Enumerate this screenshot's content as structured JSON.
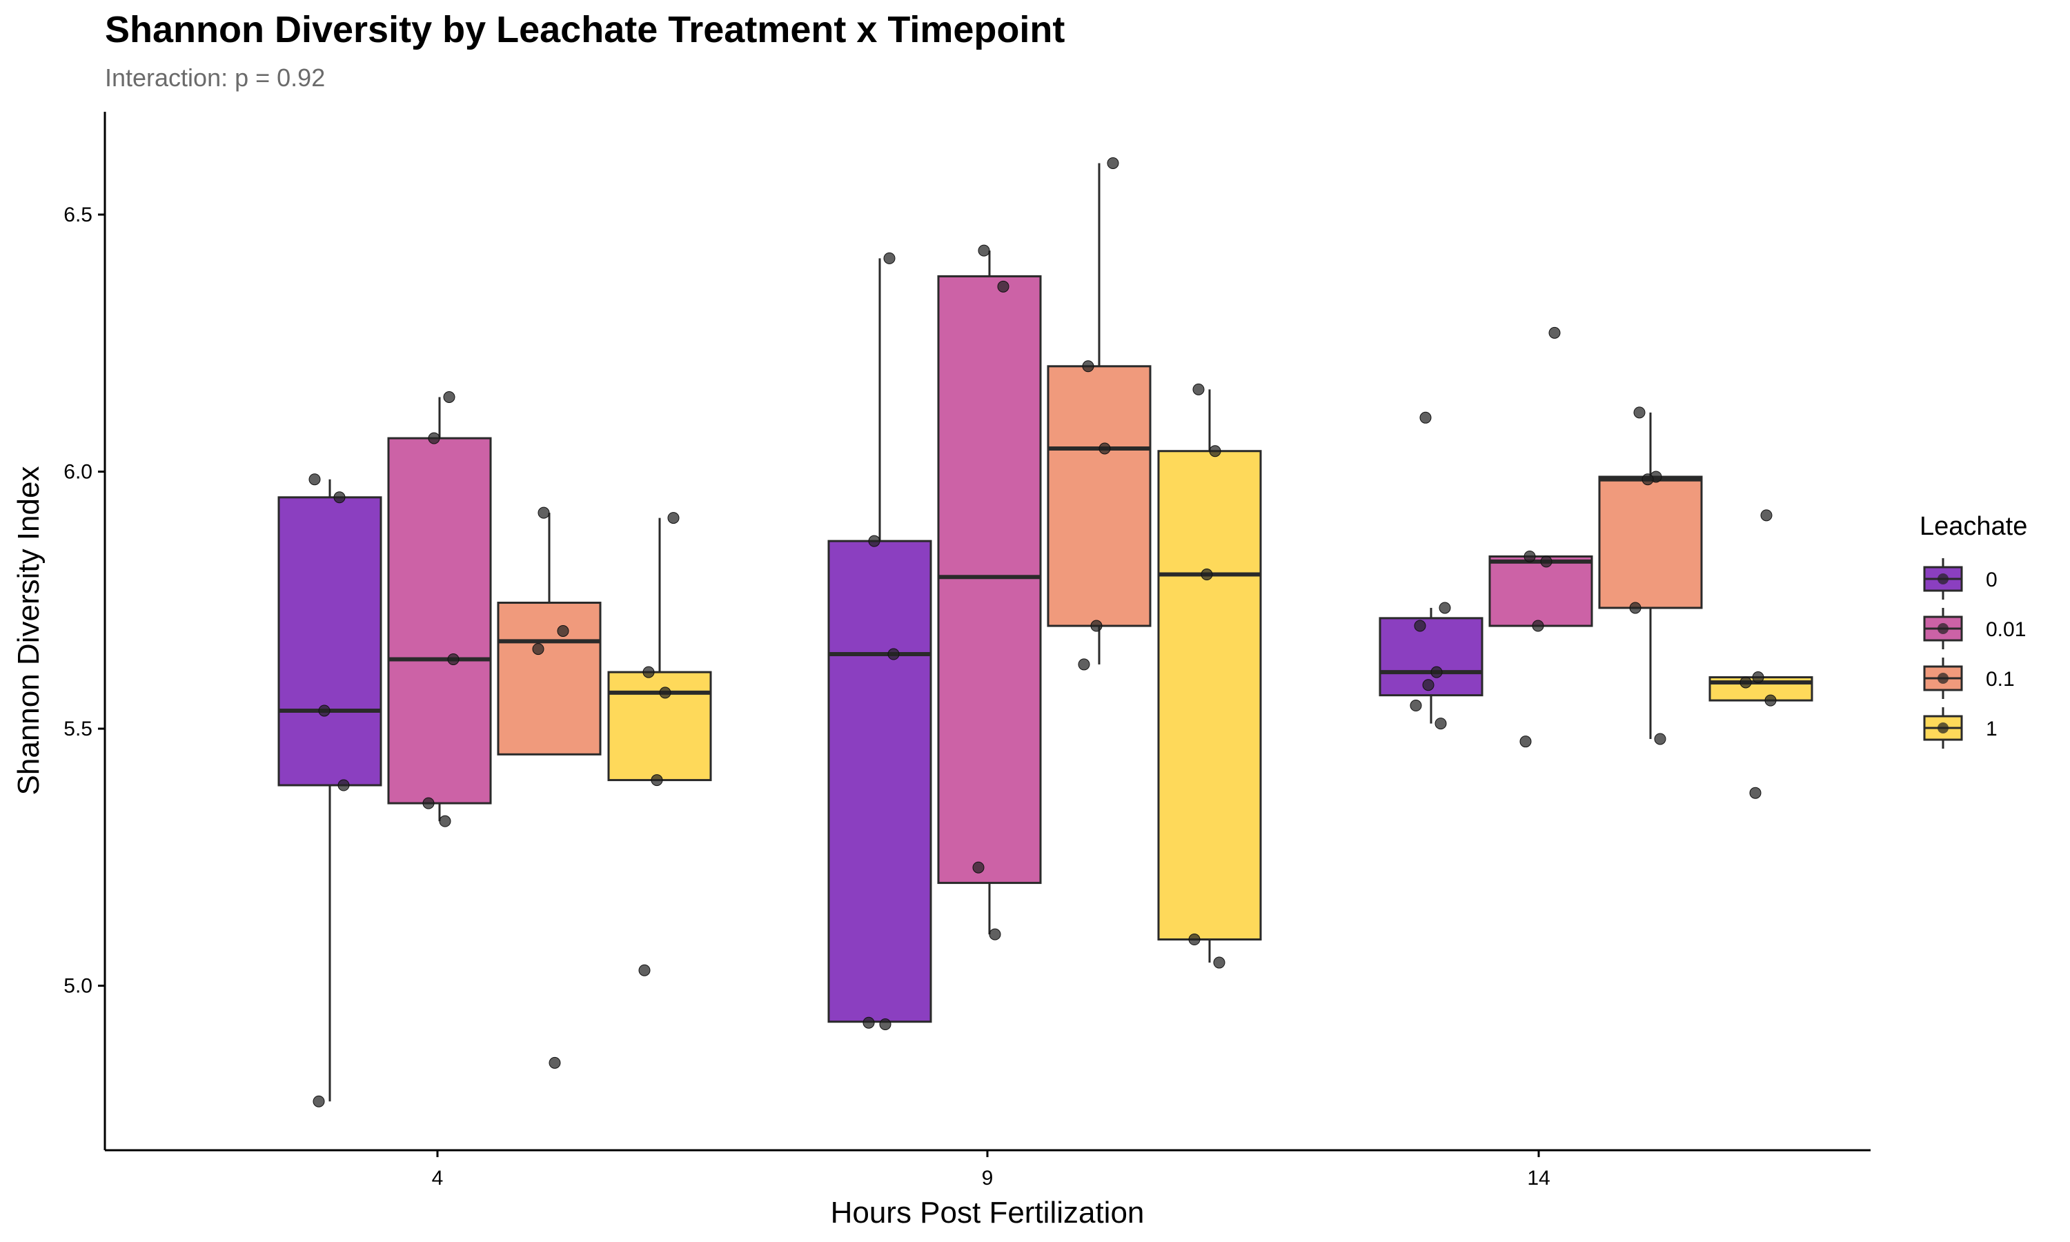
{
  "chart_data": {
    "type": "box",
    "title": "Shannon Diversity by Leachate Treatment x Timepoint",
    "subtitle": "Interaction: p = 0.92",
    "xlabel": "Hours Post Fertilization",
    "ylabel": "Shannon Diversity Index",
    "categories": [
      "4",
      "9",
      "14"
    ],
    "yticks": [
      "5.0",
      "5.5",
      "6.0",
      "6.5"
    ],
    "ylim": [
      4.68,
      6.7
    ],
    "legend": {
      "title": "Leachate",
      "position": "right",
      "entries": [
        "0",
        "0.01",
        "0.1",
        "1"
      ]
    },
    "colors": {
      "0": "#8b3fc0",
      "0.01": "#cc62a6",
      "0.1": "#f09a7c",
      "1": "#fed95a"
    },
    "grid": false,
    "series": [
      {
        "name": "0",
        "color": "#8b3fc0",
        "boxes": [
          {
            "x": "4",
            "q1": 5.39,
            "median": 5.535,
            "q3": 5.95,
            "whisker_low": 4.775,
            "whisker_high": 5.985,
            "points": [
              5.985,
              5.95,
              5.535,
              5.39,
              4.775
            ]
          },
          {
            "x": "9",
            "q1": 4.93,
            "median": 5.645,
            "q3": 5.865,
            "whisker_low": 4.93,
            "whisker_high": 6.415,
            "points": [
              6.415,
              5.865,
              5.645,
              4.928,
              4.925
            ]
          },
          {
            "x": "14",
            "q1": 5.565,
            "median": 5.61,
            "q3": 5.715,
            "whisker_low": 5.51,
            "whisker_high": 5.735,
            "points": [
              6.105,
              5.735,
              5.7,
              5.61,
              5.585,
              5.545,
              5.51
            ]
          }
        ]
      },
      {
        "name": "0.01",
        "color": "#cc62a6",
        "boxes": [
          {
            "x": "4",
            "q1": 5.355,
            "median": 5.635,
            "q3": 6.065,
            "whisker_low": 5.32,
            "whisker_high": 6.145,
            "points": [
              6.145,
              6.065,
              5.635,
              5.355,
              5.32
            ]
          },
          {
            "x": "9",
            "q1": 5.2,
            "median": 5.795,
            "q3": 6.38,
            "whisker_low": 5.1,
            "whisker_high": 6.43,
            "points": [
              6.43,
              6.36,
              5.23,
              5.1
            ]
          },
          {
            "x": "14",
            "q1": 5.7,
            "median": 5.825,
            "q3": 5.835,
            "whisker_low": 5.7,
            "whisker_high": 5.835,
            "points": [
              6.27,
              5.835,
              5.825,
              5.7,
              5.475
            ]
          }
        ]
      },
      {
        "name": "0.1",
        "color": "#f09a7c",
        "boxes": [
          {
            "x": "4",
            "q1": 5.45,
            "median": 5.67,
            "q3": 5.745,
            "whisker_low": 5.45,
            "whisker_high": 5.92,
            "points": [
              5.92,
              5.69,
              5.655,
              4.85
            ]
          },
          {
            "x": "9",
            "q1": 5.7,
            "median": 6.045,
            "q3": 6.205,
            "whisker_low": 5.625,
            "whisker_high": 6.6,
            "points": [
              6.6,
              6.205,
              6.045,
              5.7,
              5.625
            ]
          },
          {
            "x": "14",
            "q1": 5.735,
            "median": 5.985,
            "q3": 5.99,
            "whisker_low": 5.48,
            "whisker_high": 6.115,
            "points": [
              6.115,
              5.99,
              5.985,
              5.735,
              5.48
            ]
          }
        ]
      },
      {
        "name": "1",
        "color": "#fed95a",
        "boxes": [
          {
            "x": "4",
            "q1": 5.4,
            "median": 5.57,
            "q3": 5.61,
            "whisker_low": 5.4,
            "whisker_high": 5.91,
            "points": [
              5.91,
              5.61,
              5.57,
              5.4,
              5.03
            ]
          },
          {
            "x": "9",
            "q1": 5.09,
            "median": 5.8,
            "q3": 6.04,
            "whisker_low": 5.045,
            "whisker_high": 6.16,
            "points": [
              6.16,
              6.04,
              5.8,
              5.09,
              5.045
            ]
          },
          {
            "x": "14",
            "q1": 5.555,
            "median": 5.59,
            "q3": 5.6,
            "whisker_low": 5.555,
            "whisker_high": 5.6,
            "points": [
              5.915,
              5.6,
              5.59,
              5.555,
              5.375
            ]
          }
        ]
      }
    ]
  }
}
